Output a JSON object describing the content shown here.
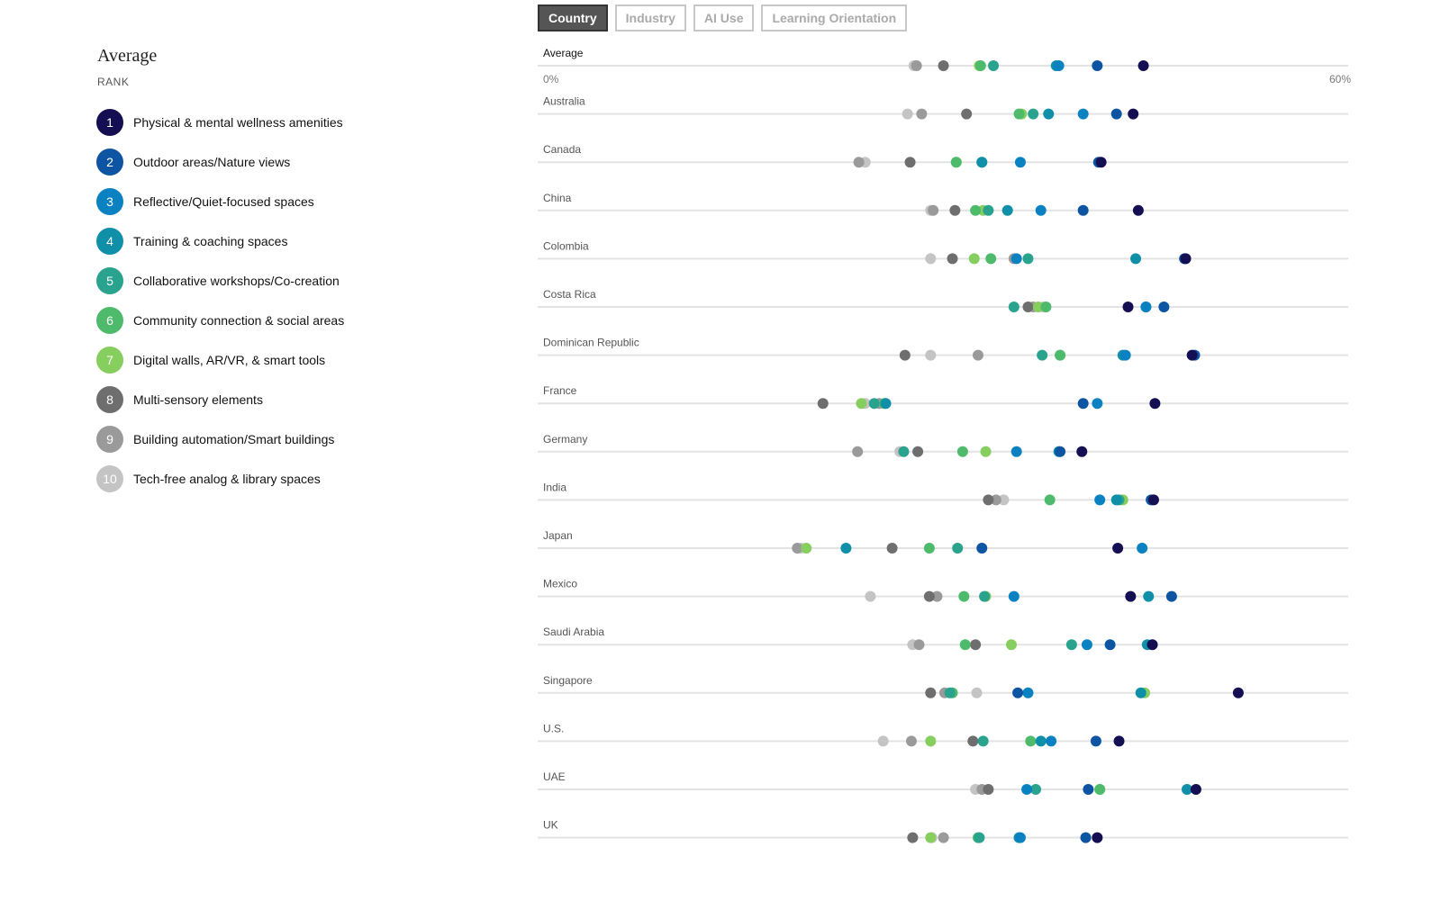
{
  "tabs": [
    {
      "label": "Country",
      "active": true
    },
    {
      "label": "Industry",
      "active": false
    },
    {
      "label": "AI Use",
      "active": false
    },
    {
      "label": "Learning Orientation",
      "active": false
    }
  ],
  "legend": {
    "title": "Average",
    "subtitle": "RANK",
    "items": [
      {
        "rank": "1",
        "label": "Physical & mental wellness amenities",
        "color": "#140f52"
      },
      {
        "rank": "2",
        "label": "Outdoor areas/Nature views",
        "color": "#0d55a2"
      },
      {
        "rank": "3",
        "label": "Reflective/Quiet-focused spaces",
        "color": "#0a82c2"
      },
      {
        "rank": "4",
        "label": "Training & coaching spaces",
        "color": "#0f8fa8"
      },
      {
        "rank": "5",
        "label": "Collaborative workshops/Co-creation",
        "color": "#2aa38e"
      },
      {
        "rank": "6",
        "label": "Community connection & social areas",
        "color": "#4dbb6b"
      },
      {
        "rank": "7",
        "label": "Digital walls, AR/VR, & smart tools",
        "color": "#86ce5d"
      },
      {
        "rank": "8",
        "label": "Multi-sensory elements",
        "color": "#6e6e6e"
      },
      {
        "rank": "9",
        "label": "Building automation/Smart buildings",
        "color": "#9a9a9a"
      },
      {
        "rank": "10",
        "label": "Tech-free analog & library spaces",
        "color": "#c4c4c4"
      }
    ]
  },
  "chart_data": {
    "type": "scatter",
    "subtype": "dot-plot",
    "xlim": [
      0,
      60
    ],
    "x_unit": "%",
    "x_ticks": [
      "0%",
      "60%"
    ],
    "grid": false,
    "series_order": [
      "1",
      "2",
      "3",
      "4",
      "5",
      "6",
      "7",
      "8",
      "9",
      "10"
    ],
    "rows": [
      {
        "label": "Average",
        "is_average": true,
        "values": [
          46.2,
          42.6,
          39.6,
          39.4,
          34.5,
          33.5,
          33.4,
          30.6,
          28.5,
          28.3
        ]
      },
      {
        "label": "Australia",
        "values": [
          45.4,
          44.1,
          41.5,
          38.8,
          37.6,
          36.5,
          36.7,
          32.4,
          28.9,
          27.8
        ]
      },
      {
        "label": "Canada",
        "values": [
          42.9,
          42.7,
          36.6,
          33.6,
          33.6,
          31.6,
          31.6,
          28.0,
          24.0,
          24.5
        ]
      },
      {
        "label": "China",
        "values": [
          45.8,
          41.5,
          38.2,
          35.6,
          34.1,
          33.1,
          33.7,
          31.5,
          29.8,
          29.6
        ]
      },
      {
        "label": "Colombia",
        "values": [
          49.5,
          49.4,
          36.3,
          45.6,
          37.2,
          34.3,
          33.0,
          31.3,
          36.1,
          29.6
        ]
      },
      {
        "label": "Costa Rica",
        "values": [
          45.0,
          47.8,
          46.4,
          46.4,
          36.1,
          38.6,
          38.0,
          37.2,
          37.6,
          38.4
        ]
      },
      {
        "label": "Dominican Republic",
        "values": [
          50.0,
          50.2,
          44.8,
          44.6,
          38.3,
          39.7,
          39.7,
          27.6,
          33.3,
          29.6
        ]
      },
      {
        "label": "France",
        "values": [
          47.1,
          41.5,
          42.6,
          26.1,
          25.2,
          26.0,
          24.2,
          21.2,
          25.6,
          24.5
        ]
      },
      {
        "label": "Germany",
        "values": [
          41.4,
          39.7,
          36.3,
          39.6,
          27.5,
          32.1,
          33.9,
          28.6,
          23.9,
          27.2
        ]
      },
      {
        "label": "India",
        "values": [
          47.0,
          46.8,
          42.8,
          44.1,
          44.3,
          38.9,
          44.6,
          34.1,
          34.7,
          35.3
        ]
      },
      {
        "label": "Japan",
        "values": [
          44.2,
          33.6,
          46.1,
          23.0,
          31.7,
          29.5,
          19.9,
          26.6,
          19.2,
          19.5
        ]
      },
      {
        "label": "Mexico",
        "values": [
          45.2,
          48.4,
          36.1,
          46.6,
          33.8,
          32.2,
          33.9,
          29.5,
          30.1,
          24.9
        ]
      },
      {
        "label": "Saudi Arabia",
        "values": [
          46.9,
          43.6,
          41.8,
          46.5,
          40.6,
          32.3,
          35.9,
          33.1,
          28.7,
          28.2
        ]
      },
      {
        "label": "Singapore",
        "values": [
          53.6,
          36.4,
          37.2,
          46.0,
          31.1,
          31.3,
          46.3,
          29.6,
          30.7,
          33.2
        ]
      },
      {
        "label": "U.S.",
        "values": [
          44.3,
          42.5,
          39.0,
          38.2,
          33.7,
          37.4,
          29.6,
          32.9,
          28.1,
          25.9
        ]
      },
      {
        "label": "UAE",
        "values": [
          50.3,
          41.9,
          37.1,
          49.6,
          37.8,
          42.8,
          42.8,
          34.1,
          33.6,
          33.1
        ]
      },
      {
        "label": "UK",
        "values": [
          42.6,
          41.7,
          36.6,
          36.5,
          33.4,
          33.3,
          29.6,
          28.2,
          30.6,
          29.7
        ]
      }
    ]
  }
}
